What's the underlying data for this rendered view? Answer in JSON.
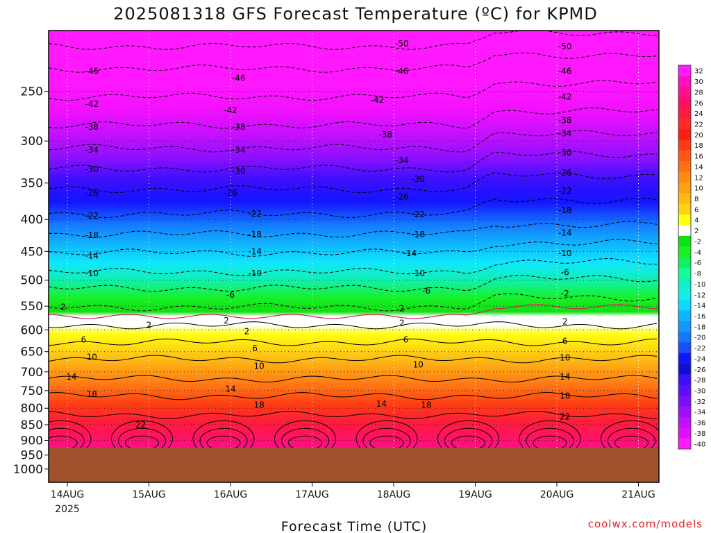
{
  "chart_data": {
    "type": "heatmap",
    "title": "2025081318 GFS Forecast Temperature (ºC) for KPMD",
    "xlabel": "Forecast Time (UTC)",
    "ylabel": "",
    "y_scale": "log-pressure",
    "y_ticks": [
      250,
      300,
      350,
      400,
      450,
      500,
      550,
      600,
      650,
      700,
      750,
      800,
      850,
      900,
      950,
      1000
    ],
    "ylim": [
      1000,
      200
    ],
    "x_ticks": [
      "14AUG",
      "15AUG",
      "16AUG",
      "17AUG",
      "18AUG",
      "19AUG",
      "20AUG",
      "21AUG"
    ],
    "x_year_label": "2025",
    "surface_pressure_hpa": 925,
    "colorbar": {
      "labels": [
        "32",
        "30",
        "28",
        "26",
        "24",
        "22",
        "20",
        "18",
        "16",
        "14",
        "12",
        "10",
        "8",
        "6",
        "4",
        "2",
        "-2",
        "-4",
        "-6",
        "-8",
        "-10",
        "-12",
        "-14",
        "-16",
        "-18",
        "-20",
        "-22",
        "-24",
        "-26",
        "-28",
        "-30",
        "-32",
        "-34",
        "-36",
        "-38",
        "-40"
      ],
      "colors": [
        "#ff1aff",
        "#ff10c0",
        "#ff1090",
        "#ff1060",
        "#ff1a40",
        "#ff2a28",
        "#ff1c14",
        "#ff3a14",
        "#ff5a14",
        "#ff7014",
        "#ff8a14",
        "#ffa014",
        "#ffb814",
        "#ffd214",
        "#ffff10",
        "#ffffff",
        "#10e010",
        "#18f028",
        "#10f060",
        "#10ff9a",
        "#10f0c8",
        "#10f0e6",
        "#10d8ff",
        "#10b4ff",
        "#1496ff",
        "#1478ff",
        "#1c4cff",
        "#1414ff",
        "#1010d2",
        "#3a10ff",
        "#5a10ff",
        "#7a10ff",
        "#a010ff",
        "#c010ff",
        "#e010ff",
        "#ff1aff"
      ]
    },
    "isotherm_levels": [
      {
        "temp": -50,
        "p": 212,
        "dashed": true
      },
      {
        "temp": -46,
        "p": 230,
        "dashed": true
      },
      {
        "temp": -42,
        "p": 255,
        "dashed": true
      },
      {
        "temp": -38,
        "p": 283,
        "dashed": true
      },
      {
        "temp": -34,
        "p": 308,
        "dashed": true
      },
      {
        "temp": -30,
        "p": 332,
        "dashed": true
      },
      {
        "temp": -26,
        "p": 358,
        "dashed": true
      },
      {
        "temp": -22,
        "p": 392,
        "dashed": true
      },
      {
        "temp": -18,
        "p": 422,
        "dashed": true
      },
      {
        "temp": -14,
        "p": 452,
        "dashed": true
      },
      {
        "temp": -10,
        "p": 485,
        "dashed": true
      },
      {
        "temp": -6,
        "p": 515,
        "dashed": true
      },
      {
        "temp": -2,
        "p": 552,
        "dashed": true
      },
      {
        "temp": 2,
        "p": 590,
        "dashed": false
      },
      {
        "temp": 6,
        "p": 628,
        "dashed": false
      },
      {
        "temp": 10,
        "p": 668,
        "dashed": false
      },
      {
        "temp": 14,
        "p": 718,
        "dashed": false
      },
      {
        "temp": 18,
        "p": 765,
        "dashed": false
      },
      {
        "temp": 22,
        "p": 820,
        "dashed": false
      }
    ],
    "contour_labels": [
      {
        "text": "-50",
        "day": 4.1,
        "p": 210
      },
      {
        "text": "-50",
        "day": 6.1,
        "p": 212
      },
      {
        "text": "-46",
        "day": 0.3,
        "p": 232
      },
      {
        "text": "-46",
        "day": 2.1,
        "p": 238
      },
      {
        "text": "-46",
        "day": 4.1,
        "p": 232
      },
      {
        "text": "-46",
        "day": 6.1,
        "p": 232
      },
      {
        "text": "-42",
        "day": 0.3,
        "p": 262
      },
      {
        "text": "-42",
        "day": 2.0,
        "p": 268
      },
      {
        "text": "-42",
        "day": 3.8,
        "p": 258
      },
      {
        "text": "-42",
        "day": 6.1,
        "p": 255
      },
      {
        "text": "-38",
        "day": 0.3,
        "p": 285
      },
      {
        "text": "-38",
        "day": 2.1,
        "p": 285
      },
      {
        "text": "-38",
        "day": 3.9,
        "p": 293
      },
      {
        "text": "-38",
        "day": 6.1,
        "p": 278
      },
      {
        "text": "-34",
        "day": 0.3,
        "p": 310
      },
      {
        "text": "-34",
        "day": 2.1,
        "p": 310
      },
      {
        "text": "-34",
        "day": 4.1,
        "p": 322
      },
      {
        "text": "-34",
        "day": 6.1,
        "p": 292
      },
      {
        "text": "-30",
        "day": 0.3,
        "p": 333
      },
      {
        "text": "-30",
        "day": 2.1,
        "p": 335
      },
      {
        "text": "-30",
        "day": 4.3,
        "p": 345
      },
      {
        "text": "-30",
        "day": 6.1,
        "p": 313
      },
      {
        "text": "-26",
        "day": 0.3,
        "p": 363
      },
      {
        "text": "-26",
        "day": 2.0,
        "p": 363
      },
      {
        "text": "-26",
        "day": 4.1,
        "p": 368
      },
      {
        "text": "-26",
        "day": 6.1,
        "p": 337
      },
      {
        "text": "-22",
        "day": 0.3,
        "p": 395
      },
      {
        "text": "-22",
        "day": 2.3,
        "p": 392
      },
      {
        "text": "-22",
        "day": 4.3,
        "p": 393
      },
      {
        "text": "-22",
        "day": 6.1,
        "p": 360
      },
      {
        "text": "-18",
        "day": 0.3,
        "p": 424
      },
      {
        "text": "-18",
        "day": 2.3,
        "p": 423
      },
      {
        "text": "-18",
        "day": 4.3,
        "p": 423
      },
      {
        "text": "-18",
        "day": 6.1,
        "p": 387
      },
      {
        "text": "-14",
        "day": 0.3,
        "p": 457
      },
      {
        "text": "-14",
        "day": 2.3,
        "p": 450
      },
      {
        "text": "-14",
        "day": 4.2,
        "p": 453
      },
      {
        "text": "-14",
        "day": 6.1,
        "p": 420
      },
      {
        "text": "-10",
        "day": 0.3,
        "p": 488
      },
      {
        "text": "-10",
        "day": 2.3,
        "p": 488
      },
      {
        "text": "-10",
        "day": 4.3,
        "p": 488
      },
      {
        "text": "-10",
        "day": 6.1,
        "p": 453
      },
      {
        "text": "-6",
        "day": 2.0,
        "p": 528
      },
      {
        "text": "-6",
        "day": 4.4,
        "p": 520
      },
      {
        "text": "-6",
        "day": 6.1,
        "p": 486
      },
      {
        "text": "-2",
        "day": 6.1,
        "p": 525
      },
      {
        "text": "2",
        "day": -0.05,
        "p": 552
      },
      {
        "text": "2",
        "day": 1.0,
        "p": 590
      },
      {
        "text": "2",
        "day": 1.95,
        "p": 580
      },
      {
        "text": "2",
        "day": 2.2,
        "p": 603
      },
      {
        "text": "2",
        "day": 4.1,
        "p": 555
      },
      {
        "text": "2",
        "day": 4.1,
        "p": 585
      },
      {
        "text": "2",
        "day": 6.1,
        "p": 582
      },
      {
        "text": "6",
        "day": 0.2,
        "p": 622
      },
      {
        "text": "6",
        "day": 2.3,
        "p": 642
      },
      {
        "text": "6",
        "day": 4.15,
        "p": 622
      },
      {
        "text": "6",
        "day": 6.1,
        "p": 625
      },
      {
        "text": "10",
        "day": 0.3,
        "p": 663
      },
      {
        "text": "10",
        "day": 2.35,
        "p": 685
      },
      {
        "text": "10",
        "day": 4.3,
        "p": 682
      },
      {
        "text": "10",
        "day": 6.1,
        "p": 665
      },
      {
        "text": "14",
        "day": 0.05,
        "p": 713
      },
      {
        "text": "14",
        "day": 2.0,
        "p": 745
      },
      {
        "text": "14",
        "day": 3.85,
        "p": 787
      },
      {
        "text": "14",
        "day": 6.1,
        "p": 713
      },
      {
        "text": "18",
        "day": 0.3,
        "p": 760
      },
      {
        "text": "18",
        "day": 2.35,
        "p": 790
      },
      {
        "text": "18",
        "day": 4.4,
        "p": 790
      },
      {
        "text": "18",
        "day": 6.1,
        "p": 765
      },
      {
        "text": "22",
        "day": 0.9,
        "p": 850
      },
      {
        "text": "22",
        "day": 6.1,
        "p": 825
      }
    ]
  },
  "credit": "coolwx.com/models"
}
